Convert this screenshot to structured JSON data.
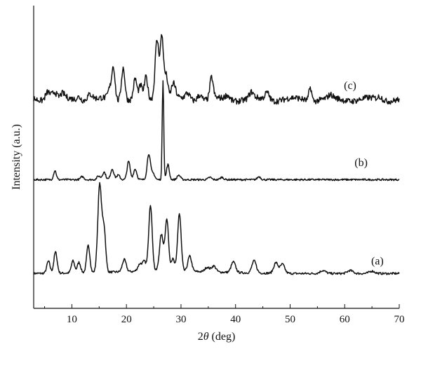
{
  "chart_data": {
    "type": "line",
    "xlabel": "2θ (deg)",
    "xlabel_symbol": "2",
    "xlabel_theta": "θ",
    "xlabel_unit": " (deg)",
    "ylabel": "Intensity (a.u.)",
    "xlim": [
      3,
      70
    ],
    "ylim": [
      0,
      100
    ],
    "x_ticks": [
      10,
      20,
      30,
      40,
      50,
      60,
      70
    ],
    "grid": false,
    "y_tick_labels": false,
    "series": [
      {
        "name": "(a)",
        "baseline": 11.5,
        "noise": 0.35,
        "peaks": [
          [
            5.7,
            4,
            0.3
          ],
          [
            7.0,
            7,
            0.3
          ],
          [
            10.2,
            4,
            0.3
          ],
          [
            11.3,
            3.5,
            0.3
          ],
          [
            13.0,
            9,
            0.3
          ],
          [
            15.1,
            29,
            0.35
          ],
          [
            15.9,
            14,
            0.3
          ],
          [
            19.6,
            4,
            0.35
          ],
          [
            22.5,
            2.5,
            0.4
          ],
          [
            23.3,
            3,
            0.3
          ],
          [
            24.4,
            22,
            0.32
          ],
          [
            26.4,
            12,
            0.35
          ],
          [
            27.4,
            17,
            0.32
          ],
          [
            28.5,
            4,
            0.3
          ],
          [
            29.7,
            19,
            0.32
          ],
          [
            31.6,
            5,
            0.35
          ],
          [
            34.8,
            1.5,
            0.4
          ],
          [
            36.0,
            2,
            0.4
          ],
          [
            39.6,
            3.5,
            0.4
          ],
          [
            43.4,
            4,
            0.4
          ],
          [
            47.4,
            3.5,
            0.4
          ],
          [
            48.6,
            3,
            0.4
          ],
          [
            56.0,
            1,
            0.5
          ],
          [
            61.0,
            1,
            0.5
          ],
          [
            65.0,
            0.8,
            0.5
          ]
        ]
      },
      {
        "name": "(b)",
        "baseline": 42.5,
        "noise": 0.3,
        "peaks": [
          [
            6.9,
            3,
            0.25
          ],
          [
            11.9,
            1,
            0.3
          ],
          [
            14.9,
            1.2,
            0.3
          ],
          [
            15.9,
            2.5,
            0.3
          ],
          [
            17.4,
            3.5,
            0.3
          ],
          [
            18.5,
            1.5,
            0.3
          ],
          [
            20.4,
            6,
            0.28
          ],
          [
            21.6,
            3.5,
            0.3
          ],
          [
            24.1,
            8.5,
            0.3
          ],
          [
            24.9,
            2,
            0.3
          ],
          [
            26.7,
            33,
            0.14
          ],
          [
            27.6,
            5,
            0.25
          ],
          [
            29.6,
            1.5,
            0.3
          ],
          [
            35.3,
            0.8,
            0.3
          ],
          [
            37.5,
            0.8,
            0.3
          ],
          [
            44.3,
            1,
            0.3
          ]
        ]
      },
      {
        "name": "(c)",
        "baseline": 69,
        "noise": 1.0,
        "peaks": [
          [
            5.6,
            3,
            0.45
          ],
          [
            6.8,
            2.5,
            0.4
          ],
          [
            8.3,
            1.5,
            0.4
          ],
          [
            11.3,
            1.2,
            0.4
          ],
          [
            13.3,
            2,
            0.5
          ],
          [
            16.9,
            3,
            0.3
          ],
          [
            17.6,
            11,
            0.3
          ],
          [
            19.4,
            11,
            0.32
          ],
          [
            21.6,
            6.5,
            0.3
          ],
          [
            22.6,
            4,
            0.3
          ],
          [
            23.6,
            7,
            0.3
          ],
          [
            25.6,
            20,
            0.35
          ],
          [
            26.5,
            21,
            0.3
          ],
          [
            27.3,
            8,
            0.3
          ],
          [
            28.6,
            5,
            0.4
          ],
          [
            31.2,
            2,
            0.4
          ],
          [
            33.4,
            2,
            0.4
          ],
          [
            35.6,
            7,
            0.3
          ],
          [
            38.5,
            1.5,
            0.4
          ],
          [
            42.9,
            2,
            0.4
          ],
          [
            45.8,
            2.5,
            0.4
          ],
          [
            53.7,
            4.5,
            0.25
          ],
          [
            57.4,
            1,
            0.4
          ],
          [
            66.5,
            1,
            0.4
          ]
        ]
      }
    ]
  }
}
